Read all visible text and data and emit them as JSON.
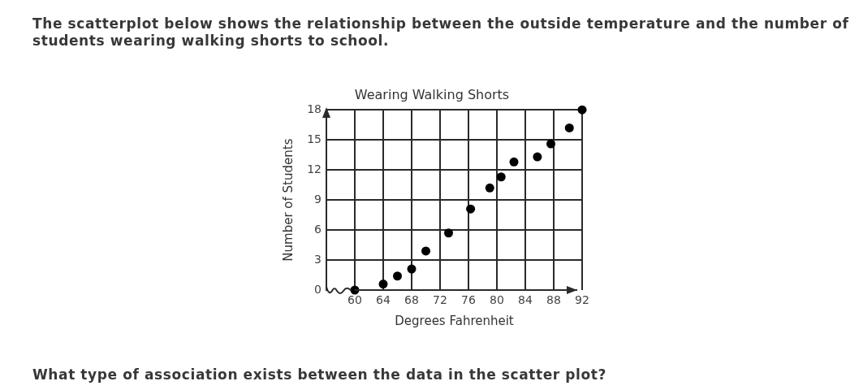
{
  "chart_data": {
    "type": "scatter",
    "title": "Wearing Walking Shorts",
    "xlabel": "Degrees Fahrenheit",
    "ylabel": "Number of Students",
    "annotations": [
      "The scatterplot below shows the relationship between the outside temperature and the number of students wearing walking shorts to school.",
      "What type of association exists between the data in the scatter plot?"
    ],
    "x": [
      60,
      64,
      66,
      68,
      70,
      73.2,
      76.3,
      79,
      80.6,
      82.4,
      85.7,
      87.6,
      90.2,
      92
    ],
    "series": [
      {
        "color": "#000000",
        "values": [
          0,
          0.6,
          1.4,
          2.1,
          3.9,
          5.7,
          8.1,
          10.2,
          11.3,
          12.8,
          13.3,
          14.6,
          16.2,
          18
        ]
      }
    ],
    "xlim": [
      56,
      92
    ],
    "xticks": [
      60,
      64,
      68,
      72,
      76,
      80,
      84,
      88,
      92
    ],
    "ylim": [
      0,
      18
    ],
    "yticks": [
      0,
      3,
      6,
      9,
      12,
      15,
      18
    ],
    "grid": true,
    "marker": "circle"
  }
}
